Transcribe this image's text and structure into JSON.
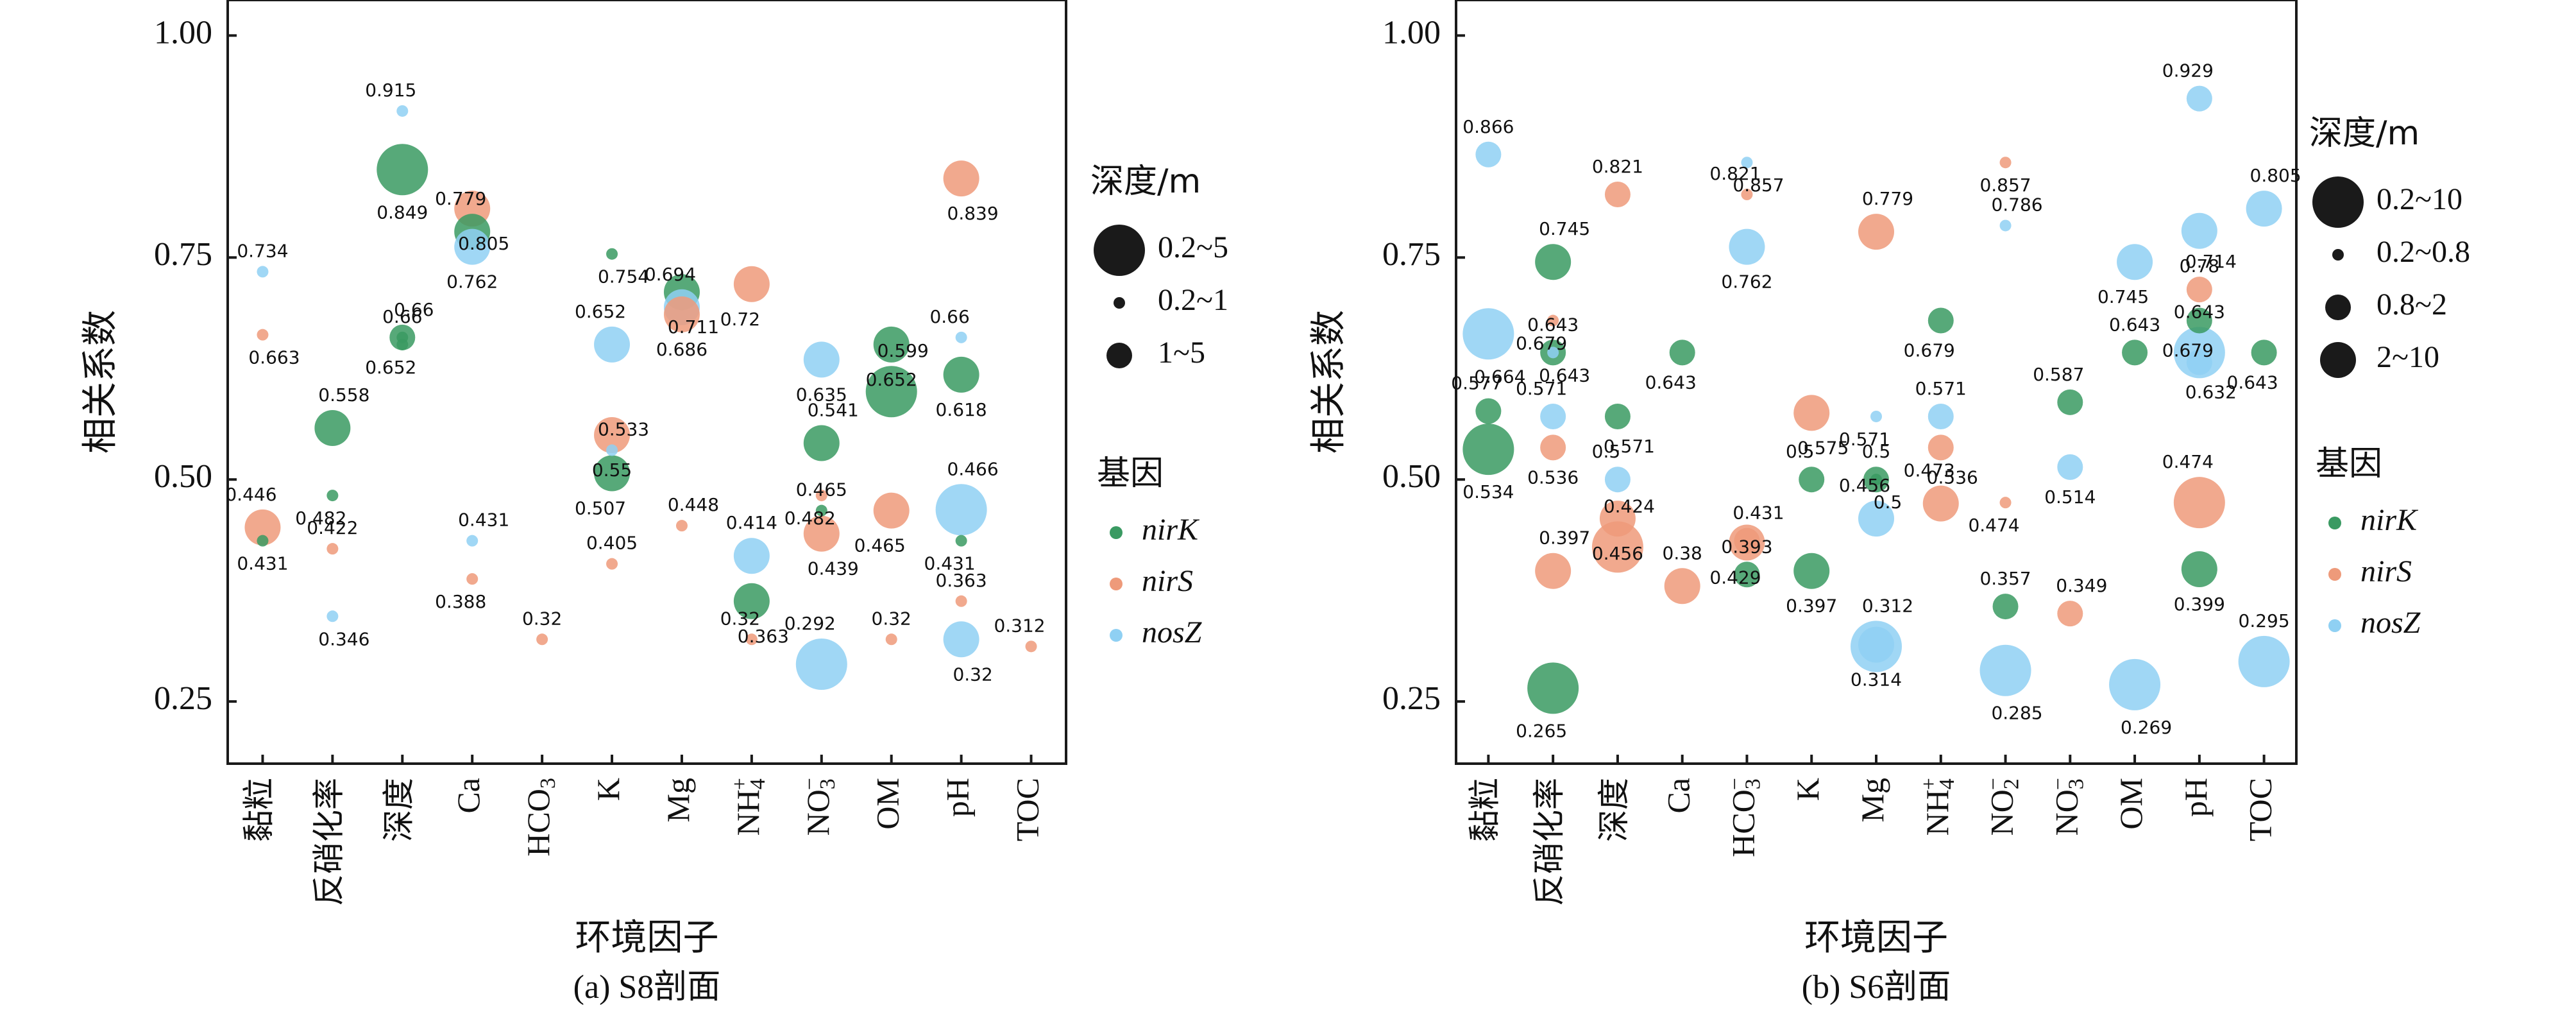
{
  "colors": {
    "nirK": "#3a9a62",
    "nirS": "#ee9a7a",
    "nosZ": "#8fd0f3",
    "frame": "#1a1a1a"
  },
  "chart_data": [
    {
      "type": "scatter",
      "caption": "(a) S8剖面",
      "xlabel": "环境因子",
      "ylabel": "相关系数",
      "ylim": [
        0.18,
        1.04
      ],
      "yticks": [
        "0.25",
        "0.50",
        "0.75",
        "1.00"
      ],
      "categories": [
        "黏粒",
        "反硝化率",
        "深度",
        "Ca",
        "HCO3",
        "K",
        "Mg",
        "NH4+",
        "NO3-",
        "OM",
        "pH",
        "TOC"
      ],
      "legend_size_title": "深度/m",
      "size_legend": [
        {
          "label": "0.2~5",
          "size": 4
        },
        {
          "label": "0.2~1",
          "size": 1
        },
        {
          "label": "1~5",
          "size": 2
        }
      ],
      "legend_gene_title": "基因",
      "gene_legend": [
        "nirK",
        "nirS",
        "nosZ"
      ],
      "points": [
        {
          "x": 0,
          "y": 0.734,
          "gene": "nosZ",
          "size": 1,
          "label": "0.734"
        },
        {
          "x": 0,
          "y": 0.663,
          "gene": "nirS",
          "size": 1,
          "label": "0.663"
        },
        {
          "x": 0,
          "y": 0.446,
          "gene": "nirS",
          "size": 3,
          "label": "0.446"
        },
        {
          "x": 0,
          "y": 0.431,
          "gene": "nirK",
          "size": 1,
          "label": "0.431"
        },
        {
          "x": 1,
          "y": 0.558,
          "gene": "nirK",
          "size": 3,
          "label": "0.558"
        },
        {
          "x": 1,
          "y": 0.482,
          "gene": "nirK",
          "size": 1,
          "label": "0.482"
        },
        {
          "x": 1,
          "y": 0.422,
          "gene": "nirS",
          "size": 1,
          "label": "0.422"
        },
        {
          "x": 1,
          "y": 0.346,
          "gene": "nosZ",
          "size": 1,
          "label": "0.346"
        },
        {
          "x": 2,
          "y": 0.915,
          "gene": "nosZ",
          "size": 1,
          "label": "0.915"
        },
        {
          "x": 2,
          "y": 0.849,
          "gene": "nirK",
          "size": 4,
          "label": "0.849"
        },
        {
          "x": 2,
          "y": 0.66,
          "gene": "nirK",
          "size": 2,
          "label": "0.66"
        },
        {
          "x": 2,
          "y": 0.652,
          "gene": "nirK",
          "size": 1,
          "label": "0.652"
        },
        {
          "x": 2,
          "y": 0.66,
          "gene": "nirK",
          "size": 1,
          "label": "0.66"
        },
        {
          "x": 3,
          "y": 0.805,
          "gene": "nirS",
          "size": 3,
          "label": "0.805"
        },
        {
          "x": 3,
          "y": 0.779,
          "gene": "nirK",
          "size": 3,
          "label": "0.779"
        },
        {
          "x": 3,
          "y": 0.762,
          "gene": "nosZ",
          "size": 3,
          "label": "0.762"
        },
        {
          "x": 3,
          "y": 0.431,
          "gene": "nosZ",
          "size": 1,
          "label": "0.431"
        },
        {
          "x": 3,
          "y": 0.388,
          "gene": "nirS",
          "size": 1,
          "label": "0.388"
        },
        {
          "x": 4,
          "y": 0.32,
          "gene": "nirS",
          "size": 1,
          "label": "0.32"
        },
        {
          "x": 5,
          "y": 0.754,
          "gene": "nirK",
          "size": 1,
          "label": "0.754"
        },
        {
          "x": 5,
          "y": 0.652,
          "gene": "nosZ",
          "size": 3,
          "label": "0.652"
        },
        {
          "x": 5,
          "y": 0.55,
          "gene": "nirS",
          "size": 3,
          "label": "0.55"
        },
        {
          "x": 5,
          "y": 0.533,
          "gene": "nosZ",
          "size": 1,
          "label": "0.533"
        },
        {
          "x": 5,
          "y": 0.507,
          "gene": "nirK",
          "size": 3,
          "label": "0.507"
        },
        {
          "x": 5,
          "y": 0.405,
          "gene": "nirS",
          "size": 1,
          "label": "0.405"
        },
        {
          "x": 6,
          "y": 0.711,
          "gene": "nirK",
          "size": 3,
          "label": "0.711"
        },
        {
          "x": 6,
          "y": 0.694,
          "gene": "nosZ",
          "size": 3,
          "label": "0.694"
        },
        {
          "x": 6,
          "y": 0.686,
          "gene": "nirS",
          "size": 3,
          "label": "0.686"
        },
        {
          "x": 6,
          "y": 0.448,
          "gene": "nirS",
          "size": 1,
          "label": "0.448"
        },
        {
          "x": 7,
          "y": 0.72,
          "gene": "nirS",
          "size": 3,
          "label": "0.72"
        },
        {
          "x": 7,
          "y": 0.414,
          "gene": "nosZ",
          "size": 3,
          "label": "0.414"
        },
        {
          "x": 7,
          "y": 0.363,
          "gene": "nirK",
          "size": 3,
          "label": "0.363"
        },
        {
          "x": 7,
          "y": 0.32,
          "gene": "nirS",
          "size": 1,
          "label": "0.32"
        },
        {
          "x": 8,
          "y": 0.635,
          "gene": "nosZ",
          "size": 3,
          "label": "0.635"
        },
        {
          "x": 8,
          "y": 0.541,
          "gene": "nirK",
          "size": 3,
          "label": "0.541"
        },
        {
          "x": 8,
          "y": 0.482,
          "gene": "nirS",
          "size": 1,
          "label": "0.482"
        },
        {
          "x": 8,
          "y": 0.465,
          "gene": "nirK",
          "size": 1,
          "label": "0.465"
        },
        {
          "x": 8,
          "y": 0.439,
          "gene": "nirS",
          "size": 3,
          "label": "0.439"
        },
        {
          "x": 8,
          "y": 0.292,
          "gene": "nosZ",
          "size": 4,
          "label": "0.292"
        },
        {
          "x": 9,
          "y": 0.652,
          "gene": "nirK",
          "size": 3,
          "label": "0.652"
        },
        {
          "x": 9,
          "y": 0.599,
          "gene": "nirK",
          "size": 4,
          "label": "0.599"
        },
        {
          "x": 9,
          "y": 0.465,
          "gene": "nirS",
          "size": 3,
          "label": "0.465"
        },
        {
          "x": 9,
          "y": 0.32,
          "gene": "nirS",
          "size": 1,
          "label": "0.32"
        },
        {
          "x": 10,
          "y": 0.839,
          "gene": "nirS",
          "size": 3,
          "label": "0.839"
        },
        {
          "x": 10,
          "y": 0.66,
          "gene": "nosZ",
          "size": 1,
          "label": "0.66"
        },
        {
          "x": 10,
          "y": 0.618,
          "gene": "nirK",
          "size": 3,
          "label": "0.618"
        },
        {
          "x": 10,
          "y": 0.466,
          "gene": "nosZ",
          "size": 4,
          "label": "0.466"
        },
        {
          "x": 10,
          "y": 0.431,
          "gene": "nirK",
          "size": 1,
          "label": "0.431"
        },
        {
          "x": 10,
          "y": 0.363,
          "gene": "nirS",
          "size": 1,
          "label": "0.363"
        },
        {
          "x": 10,
          "y": 0.32,
          "gene": "nosZ",
          "size": 3,
          "label": "0.32"
        },
        {
          "x": 11,
          "y": 0.312,
          "gene": "nirS",
          "size": 1,
          "label": "0.312"
        }
      ]
    },
    {
      "type": "scatter",
      "caption": "(b) S6剖面",
      "xlabel": "环境因子",
      "ylabel": "相关系数",
      "ylim": [
        0.18,
        1.04
      ],
      "yticks": [
        "0.25",
        "0.50",
        "0.75",
        "1.00"
      ],
      "categories": [
        "黏粒",
        "反硝化率",
        "深度",
        "Ca",
        "HCO3-",
        "K",
        "Mg",
        "NH4+",
        "NO2-",
        "NO3-",
        "OM",
        "pH",
        "TOC"
      ],
      "legend_size_title": "深度/m",
      "size_legend": [
        {
          "label": "0.2~10",
          "size": 4
        },
        {
          "label": "0.2~0.8",
          "size": 1
        },
        {
          "label": "0.8~2",
          "size": 2
        },
        {
          "label": "2~10",
          "size": 3
        }
      ],
      "legend_gene_title": "基因",
      "gene_legend": [
        "nirK",
        "nirS",
        "nosZ"
      ],
      "points": [
        {
          "x": 0,
          "y": 0.866,
          "gene": "nosZ",
          "size": 2,
          "label": "0.866"
        },
        {
          "x": 0,
          "y": 0.664,
          "gene": "nosZ",
          "size": 4,
          "label": "0.664"
        },
        {
          "x": 0,
          "y": 0.577,
          "gene": "nirK",
          "size": 2,
          "label": "0.577"
        },
        {
          "x": 0,
          "y": 0.534,
          "gene": "nirK",
          "size": 4,
          "label": "0.534"
        },
        {
          "x": 1,
          "y": 0.745,
          "gene": "nirK",
          "size": 3,
          "label": "0.745"
        },
        {
          "x": 1,
          "y": 0.679,
          "gene": "nirS",
          "size": 1,
          "label": "0.679"
        },
        {
          "x": 1,
          "y": 0.643,
          "gene": "nirK",
          "size": 2,
          "label": "0.643"
        },
        {
          "x": 1,
          "y": 0.643,
          "gene": "nosZ",
          "size": 1,
          "label": "0.643"
        },
        {
          "x": 1,
          "y": 0.571,
          "gene": "nosZ",
          "size": 2,
          "label": "0.571"
        },
        {
          "x": 1,
          "y": 0.536,
          "gene": "nirS",
          "size": 2,
          "label": "0.536"
        },
        {
          "x": 1,
          "y": 0.397,
          "gene": "nirS",
          "size": 3,
          "label": "0.397"
        },
        {
          "x": 1,
          "y": 0.265,
          "gene": "nirK",
          "size": 4,
          "label": "0.265"
        },
        {
          "x": 2,
          "y": 0.821,
          "gene": "nirS",
          "size": 2,
          "label": "0.821"
        },
        {
          "x": 2,
          "y": 0.571,
          "gene": "nirK",
          "size": 2,
          "label": "0.571"
        },
        {
          "x": 2,
          "y": 0.5,
          "gene": "nosZ",
          "size": 2,
          "label": "0.5"
        },
        {
          "x": 2,
          "y": 0.456,
          "gene": "nirS",
          "size": 3,
          "label": "0.456"
        },
        {
          "x": 2,
          "y": 0.424,
          "gene": "nirS",
          "size": 4,
          "label": "0.424"
        },
        {
          "x": 3,
          "y": 0.643,
          "gene": "nirK",
          "size": 2,
          "label": "0.643"
        },
        {
          "x": 3,
          "y": 0.38,
          "gene": "nirS",
          "size": 3,
          "label": "0.38"
        },
        {
          "x": 4,
          "y": 0.857,
          "gene": "nosZ",
          "size": 1,
          "label": "0.857"
        },
        {
          "x": 4,
          "y": 0.821,
          "gene": "nirS",
          "size": 1,
          "label": "0.821"
        },
        {
          "x": 4,
          "y": 0.762,
          "gene": "nosZ",
          "size": 3,
          "label": "0.762"
        },
        {
          "x": 4,
          "y": 0.431,
          "gene": "nirS",
          "size": 2,
          "label": "0.431"
        },
        {
          "x": 4,
          "y": 0.429,
          "gene": "nirS",
          "size": 3,
          "label": "0.429"
        },
        {
          "x": 4,
          "y": 0.393,
          "gene": "nirK",
          "size": 2,
          "label": "0.393"
        },
        {
          "x": 5,
          "y": 0.575,
          "gene": "nirS",
          "size": 3,
          "label": "0.575"
        },
        {
          "x": 5,
          "y": 0.5,
          "gene": "nirK",
          "size": 2,
          "label": "0.5"
        },
        {
          "x": 5,
          "y": 0.397,
          "gene": "nirK",
          "size": 3,
          "label": "0.397"
        },
        {
          "x": 6,
          "y": 0.779,
          "gene": "nirS",
          "size": 3,
          "label": "0.779"
        },
        {
          "x": 6,
          "y": 0.571,
          "gene": "nosZ",
          "size": 1,
          "label": "0.571"
        },
        {
          "x": 6,
          "y": 0.5,
          "gene": "nirK",
          "size": 2,
          "label": "0.5"
        },
        {
          "x": 6,
          "y": 0.5,
          "gene": "nirK",
          "size": 1,
          "label": "0.5"
        },
        {
          "x": 6,
          "y": 0.456,
          "gene": "nosZ",
          "size": 3,
          "label": "0.456"
        },
        {
          "x": 6,
          "y": 0.314,
          "gene": "nosZ",
          "size": 3,
          "label": "0.314"
        },
        {
          "x": 6,
          "y": 0.312,
          "gene": "nosZ",
          "size": 4,
          "label": "0.312"
        },
        {
          "x": 7,
          "y": 0.679,
          "gene": "nirK",
          "size": 2,
          "label": "0.679"
        },
        {
          "x": 7,
          "y": 0.571,
          "gene": "nosZ",
          "size": 2,
          "label": "0.571"
        },
        {
          "x": 7,
          "y": 0.536,
          "gene": "nirS",
          "size": 2,
          "label": "0.536"
        },
        {
          "x": 7,
          "y": 0.473,
          "gene": "nirS",
          "size": 3,
          "label": "0.473"
        },
        {
          "x": 8,
          "y": 0.857,
          "gene": "nirS",
          "size": 1,
          "label": "0.857"
        },
        {
          "x": 8,
          "y": 0.786,
          "gene": "nosZ",
          "size": 1,
          "label": "0.786"
        },
        {
          "x": 8,
          "y": 0.474,
          "gene": "nirS",
          "size": 1,
          "label": "0.474"
        },
        {
          "x": 8,
          "y": 0.357,
          "gene": "nirK",
          "size": 2,
          "label": "0.357"
        },
        {
          "x": 8,
          "y": 0.285,
          "gene": "nosZ",
          "size": 4,
          "label": "0.285"
        },
        {
          "x": 9,
          "y": 0.587,
          "gene": "nirK",
          "size": 2,
          "label": "0.587"
        },
        {
          "x": 9,
          "y": 0.514,
          "gene": "nosZ",
          "size": 2,
          "label": "0.514"
        },
        {
          "x": 9,
          "y": 0.349,
          "gene": "nirS",
          "size": 2,
          "label": "0.349"
        },
        {
          "x": 10,
          "y": 0.745,
          "gene": "nosZ",
          "size": 3,
          "label": "0.745"
        },
        {
          "x": 10,
          "y": 0.643,
          "gene": "nirK",
          "size": 2,
          "label": "0.643"
        },
        {
          "x": 10,
          "y": 0.269,
          "gene": "nosZ",
          "size": 4,
          "label": "0.269"
        },
        {
          "x": 11,
          "y": 0.929,
          "gene": "nosZ",
          "size": 2,
          "label": "0.929"
        },
        {
          "x": 11,
          "y": 0.78,
          "gene": "nosZ",
          "size": 3,
          "label": "0.78"
        },
        {
          "x": 11,
          "y": 0.714,
          "gene": "nirS",
          "size": 2,
          "label": "0.714"
        },
        {
          "x": 11,
          "y": 0.679,
          "gene": "nirK",
          "size": 2,
          "label": "0.679"
        },
        {
          "x": 11,
          "y": 0.643,
          "gene": "nosZ",
          "size": 4,
          "label": "0.643"
        },
        {
          "x": 11,
          "y": 0.632,
          "gene": "nosZ",
          "size": 2,
          "label": "0.632"
        },
        {
          "x": 11,
          "y": 0.474,
          "gene": "nirS",
          "size": 4,
          "label": "0.474"
        },
        {
          "x": 11,
          "y": 0.399,
          "gene": "nirK",
          "size": 3,
          "label": "0.399"
        },
        {
          "x": 12,
          "y": 0.805,
          "gene": "nosZ",
          "size": 3,
          "label": "0.805"
        },
        {
          "x": 12,
          "y": 0.643,
          "gene": "nirK",
          "size": 2,
          "label": "0.643"
        },
        {
          "x": 12,
          "y": 0.295,
          "gene": "nosZ",
          "size": 4,
          "label": "0.295"
        }
      ]
    }
  ]
}
